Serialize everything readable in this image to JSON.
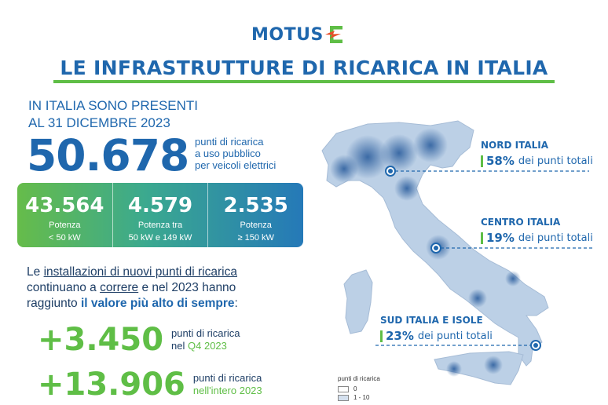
{
  "logo": {
    "text": "MOTUS"
  },
  "title": "LE INFRASTRUTTURE DI RICARICA IN ITALIA",
  "intro": {
    "line1": "IN ITALIA SONO PRESENTI",
    "line2": "AL 31 DICEMBRE 2023",
    "total": "50.678",
    "caption_lines": [
      "punti di ricarica",
      "a uso pubblico",
      "per veicoli elettrici"
    ]
  },
  "stats": [
    {
      "value": "43.564",
      "label_1": "Potenza",
      "label_2": "< 50 kW"
    },
    {
      "value": "4.579",
      "label_1": "Potenza tra",
      "label_2": "50 kW e 149 kW"
    },
    {
      "value": "2.535",
      "label_1": "Potenza",
      "label_2": "≥ 150 kW"
    }
  ],
  "paragraph": {
    "t1": "Le ",
    "u1": "installazioni di nuovi punti di ricarica",
    "t2": "continuano a ",
    "u2": "correre",
    "t3": " e nel 2023 hanno",
    "t4": "raggiunto ",
    "hl": "il valore più alto di sempre",
    "t5": ":"
  },
  "growth": [
    {
      "value": "+3.450",
      "caption": "punti di ricarica",
      "prefix": "nel ",
      "period": "Q4 2023"
    },
    {
      "value": "+13.906",
      "caption": "punti di ricarica",
      "prefix": "",
      "period": "nell'intero 2023"
    }
  ],
  "regions": [
    {
      "name": "NORD ITALIA",
      "pct": "58%",
      "text": "dei punti totali"
    },
    {
      "name": "CENTRO ITALIA",
      "pct": "19%",
      "text": "dei punti totali"
    },
    {
      "name": "SUD ITALIA E ISOLE",
      "pct": "23%",
      "text": "dei punti totali"
    }
  ],
  "legend": {
    "title": "punti di ricarica",
    "items": [
      {
        "label": "0",
        "color": "#ffffff"
      },
      {
        "label": "1 - 10",
        "color": "#d4e0ee"
      }
    ]
  },
  "colors": {
    "brand_blue": "#1f67ad",
    "brand_green": "#5fbe46",
    "map_fill": "#bcd0e6",
    "map_dense": "#2d5f9e"
  }
}
